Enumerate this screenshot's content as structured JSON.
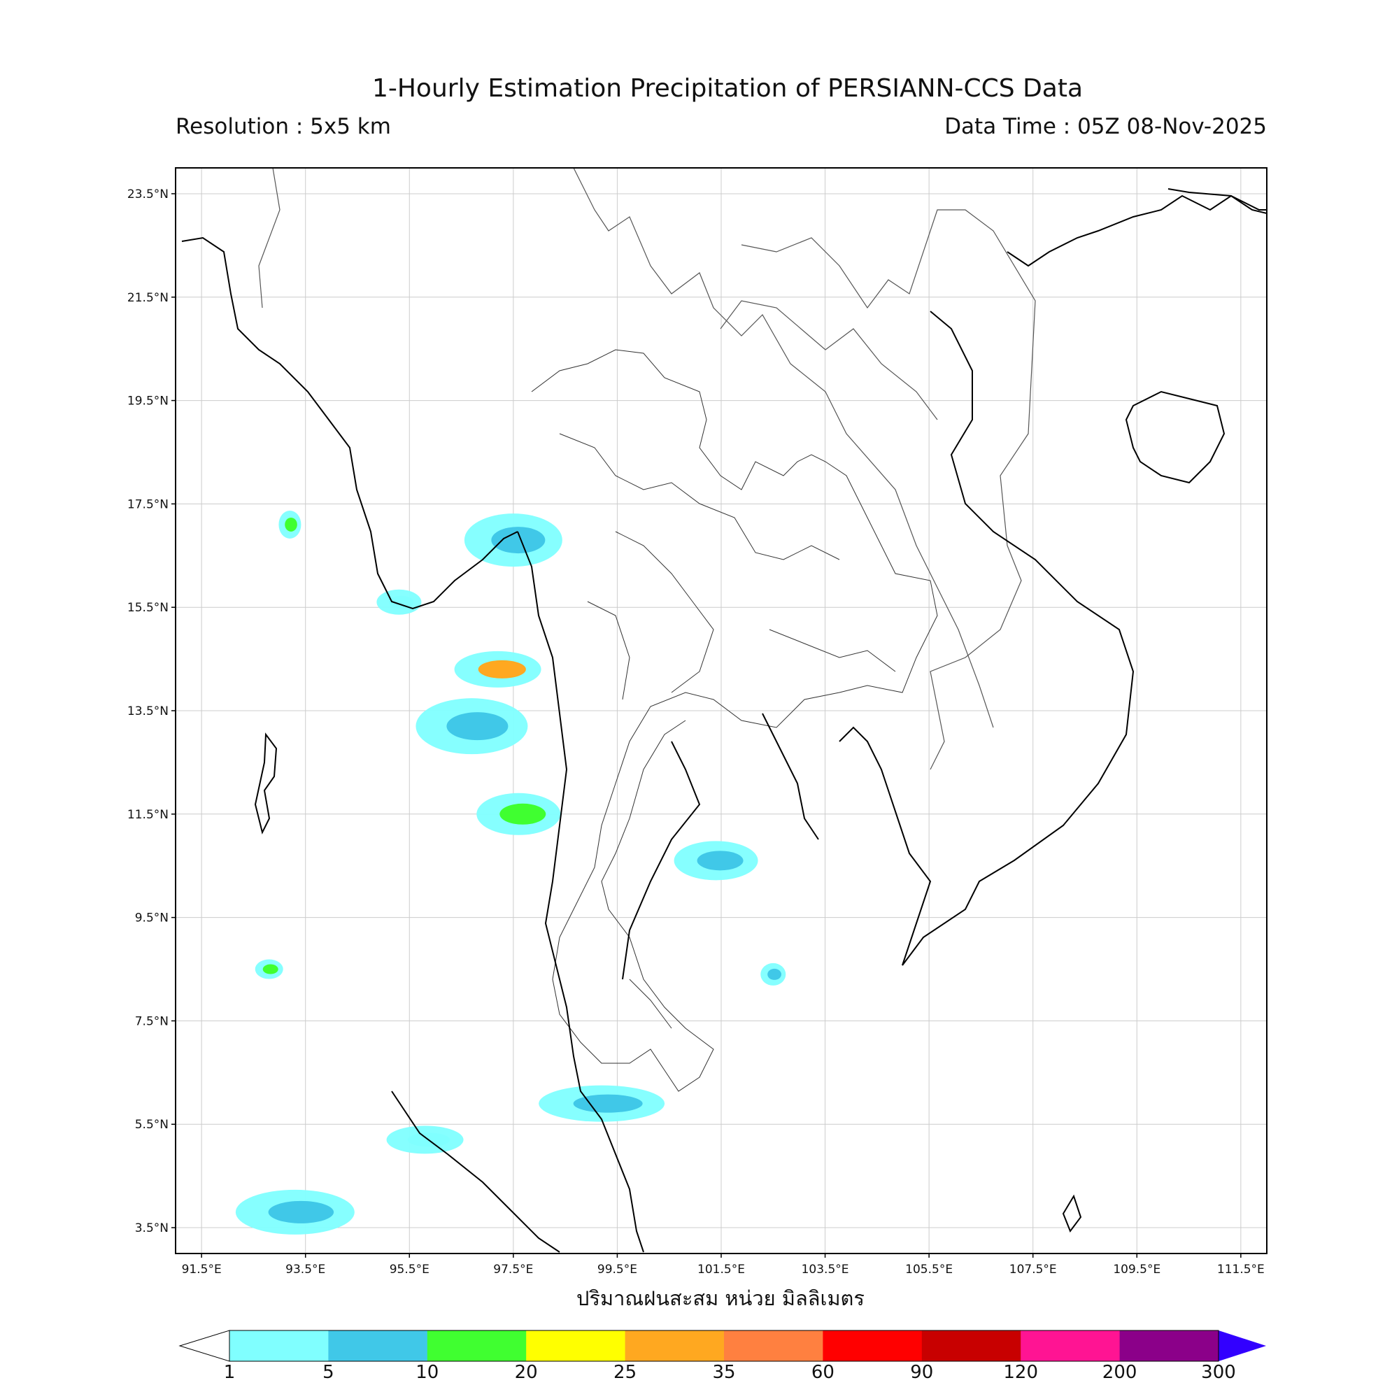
{
  "header": {
    "title": "1-Hourly Estimation Precipitation of PERSIANN-CCS Data",
    "resolution": "Resolution : 5x5 km",
    "data_time": "Data Time : 05Z 08-Nov-2025"
  },
  "map": {
    "lat_labels": [
      "23.5°N",
      "21.5°N",
      "19.5°N",
      "17.5°N",
      "15.5°N",
      "13.5°N",
      "11.5°N",
      "9.5°N",
      "7.5°N",
      "5.5°N",
      "3.5°N"
    ],
    "lon_labels": [
      "91.5°E",
      "93.5°E",
      "95.5°E",
      "97.5°E",
      "99.5°E",
      "101.5°E",
      "103.5°E",
      "105.5°E",
      "107.5°E",
      "109.5°E",
      "111.5°E"
    ],
    "lon_range": [
      91,
      112
    ],
    "lat_range": [
      3,
      24
    ],
    "grid": true,
    "rain_areas": [
      {
        "lon": 97.5,
        "lat": 16.8,
        "level": "5"
      },
      {
        "lon": 97.2,
        "lat": 14.3,
        "level": "25"
      },
      {
        "lon": 96.7,
        "lat": 13.2,
        "level": "5"
      },
      {
        "lon": 97.6,
        "lat": 11.5,
        "level": "10"
      },
      {
        "lon": 101.4,
        "lat": 10.6,
        "level": "5"
      },
      {
        "lon": 99.2,
        "lat": 5.9,
        "level": "5"
      },
      {
        "lon": 95.8,
        "lat": 5.2,
        "level": "1"
      },
      {
        "lon": 93.3,
        "lat": 3.8,
        "level": "5"
      },
      {
        "lon": 93.2,
        "lat": 17.1,
        "level": "10"
      },
      {
        "lon": 95.3,
        "lat": 15.6,
        "level": "1"
      },
      {
        "lon": 92.8,
        "lat": 8.5,
        "level": "10"
      },
      {
        "lon": 102.5,
        "lat": 8.4,
        "level": "5"
      }
    ]
  },
  "xlabel": "ปริมาณฝนสะสม หน่วย มิลลิเมตร",
  "colorbar": {
    "labels": [
      "1",
      "5",
      "10",
      "20",
      "25",
      "35",
      "60",
      "90",
      "120",
      "200",
      "300"
    ],
    "colors": [
      "#80ffff",
      "#40c8e8",
      "#40ff30",
      "#ffff00",
      "#ffa820",
      "#ff8040",
      "#ff0000",
      "#c80000",
      "#ff1493",
      "#8b0089",
      "#3200ff"
    ],
    "under_color": "#ffffff"
  }
}
